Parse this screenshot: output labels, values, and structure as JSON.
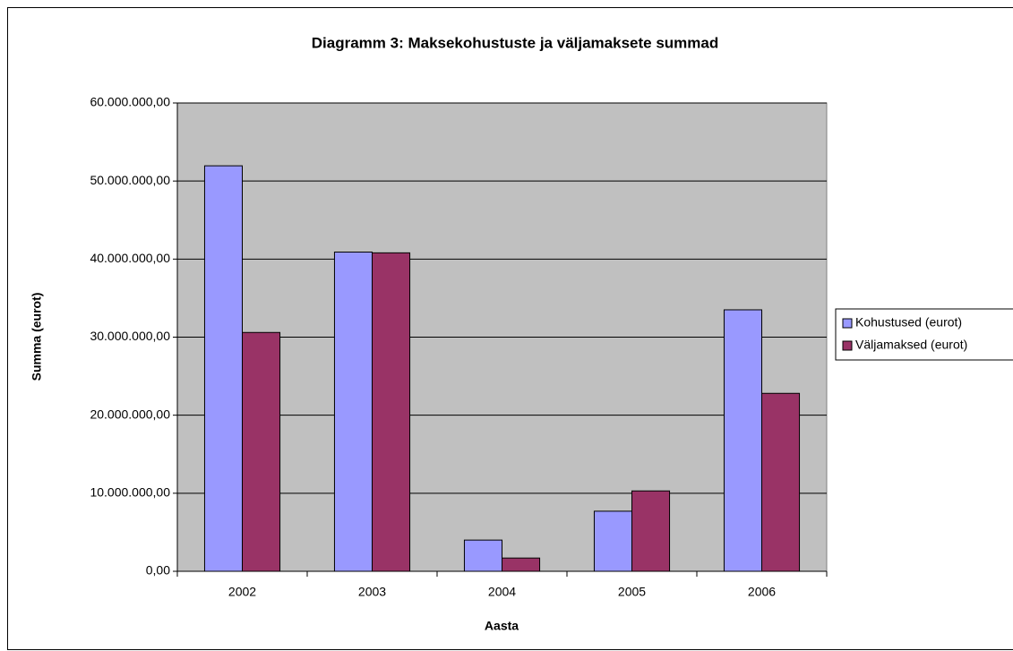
{
  "chart_data": {
    "type": "bar",
    "title": "Diagramm 3: Maksekohustuste ja väljamaksete summad",
    "x_label": "Aasta",
    "y_label": "Summa (eurot)",
    "categories": [
      "2002",
      "2003",
      "2004",
      "2005",
      "2006"
    ],
    "series": [
      {
        "name": "Kohustused (eurot)",
        "color": "#9999ff",
        "values": [
          51950000,
          40900000,
          4000000,
          7700000,
          33500000
        ]
      },
      {
        "name": "Väljamaksed (eurot)",
        "color": "#993366",
        "values": [
          30600000,
          40800000,
          1700000,
          10300000,
          22800000
        ]
      }
    ],
    "ylim": [
      0,
      60000000
    ],
    "yticks": [
      {
        "value": 0,
        "label": "0,00"
      },
      {
        "value": 10000000,
        "label": "10.000.000,00"
      },
      {
        "value": 20000000,
        "label": "20.000.000,00"
      },
      {
        "value": 30000000,
        "label": "30.000.000,00"
      },
      {
        "value": 40000000,
        "label": "40.000.000,00"
      },
      {
        "value": 50000000,
        "label": "50.000.000,00"
      },
      {
        "value": 60000000,
        "label": "60.000.000,00"
      }
    ],
    "grid": true,
    "legend": "right",
    "plot_background": "#c0c0c0"
  }
}
